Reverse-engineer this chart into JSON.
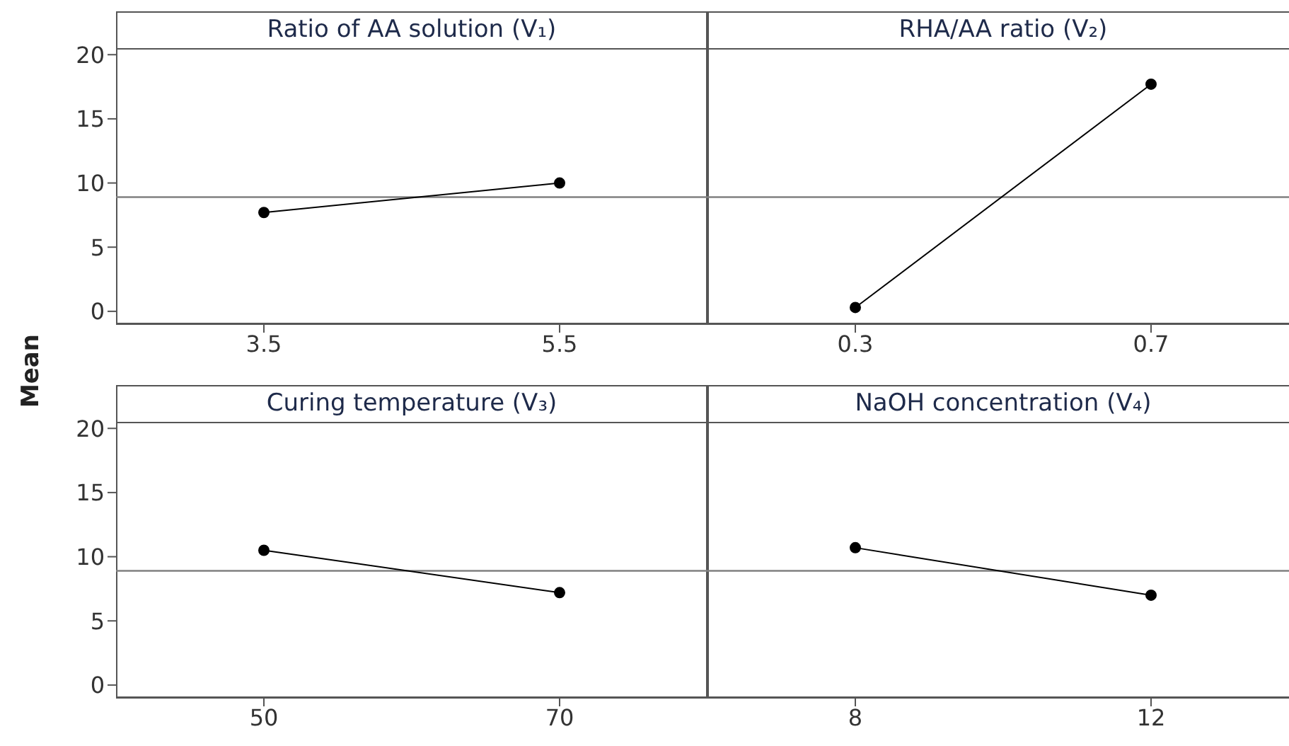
{
  "chart_data": [
    {
      "type": "line",
      "title": "Ratio of AA solution (V₁)",
      "ylabel": "Mean",
      "categories": [
        "3.5",
        "5.5"
      ],
      "series": [
        {
          "color": "#000000",
          "values": [
            7.7,
            10.0
          ]
        }
      ],
      "ylim": [
        -1,
        20.4
      ],
      "yticks": [
        0,
        5,
        10,
        15,
        20
      ],
      "ref_lines": [
        {
          "axis": "y",
          "value": 8.9,
          "color": "#808080"
        }
      ],
      "marker": "circle"
    },
    {
      "type": "line",
      "title": "RHA/AA ratio (V₂)",
      "categories": [
        "0.3",
        "0.7"
      ],
      "series": [
        {
          "color": "#000000",
          "values": [
            0.3,
            17.7
          ]
        }
      ],
      "ylim": [
        -1,
        20.4
      ],
      "yticks": [
        0,
        5,
        10,
        15,
        20
      ],
      "ref_lines": [
        {
          "axis": "y",
          "value": 8.9,
          "color": "#808080"
        }
      ],
      "marker": "circle",
      "tick_labels": "x"
    },
    {
      "type": "line",
      "title": "Curing temperature (V₃)",
      "categories": [
        "50",
        "70"
      ],
      "series": [
        {
          "color": "#000000",
          "values": [
            10.5,
            7.2
          ]
        }
      ],
      "ylim": [
        -1,
        20.4
      ],
      "yticks": [
        0,
        5,
        10,
        15,
        20
      ],
      "ref_lines": [
        {
          "axis": "y",
          "value": 8.9,
          "color": "#808080"
        }
      ],
      "marker": "circle"
    },
    {
      "type": "line",
      "title": "NaOH concentration (V₄)",
      "categories": [
        "8",
        "12"
      ],
      "series": [
        {
          "color": "#000000",
          "values": [
            10.7,
            7.0
          ]
        }
      ],
      "ylim": [
        -1,
        20.4
      ],
      "yticks": [
        0,
        5,
        10,
        15,
        20
      ],
      "ref_lines": [
        {
          "axis": "y",
          "value": 8.9,
          "color": "#808080"
        }
      ],
      "marker": "circle",
      "tick_labels": "x"
    }
  ]
}
